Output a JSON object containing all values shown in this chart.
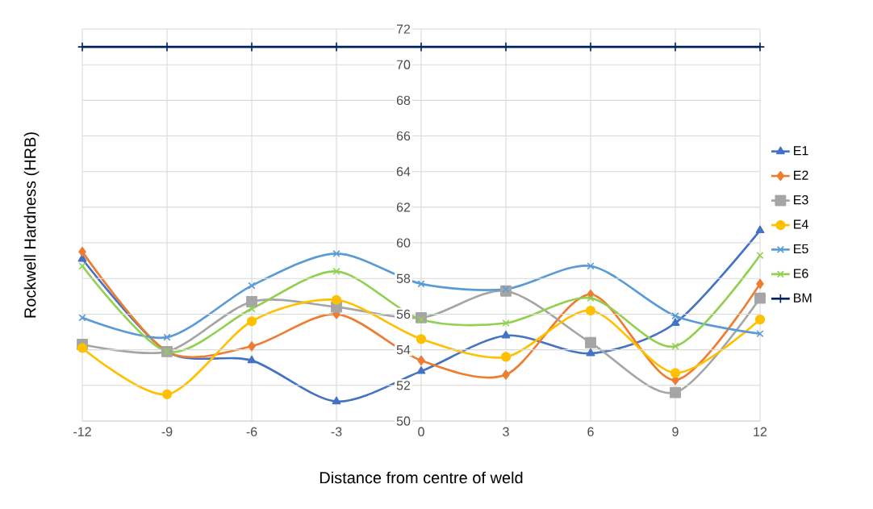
{
  "chart_data": {
    "type": "line",
    "xlabel": "Distance from centre of weld",
    "ylabel": "Rockwell Hardness (HRB)",
    "x": [
      -12,
      -9,
      -6,
      -3,
      0,
      3,
      6,
      9,
      12
    ],
    "xlim": [
      -12,
      12
    ],
    "xticks": [
      -12,
      -9,
      -6,
      -3,
      0,
      3,
      6,
      9,
      12
    ],
    "ylim": [
      50,
      72
    ],
    "yticks": [
      50,
      52,
      54,
      56,
      58,
      60,
      62,
      64,
      66,
      68,
      70,
      72
    ],
    "grid": true,
    "legend": "right",
    "series": [
      {
        "name": "E1",
        "color": "#4472c4",
        "marker": "triangle",
        "values": [
          59.1,
          53.9,
          53.4,
          51.1,
          52.8,
          54.8,
          53.8,
          55.5,
          60.7
        ]
      },
      {
        "name": "E2",
        "color": "#ed7d31",
        "marker": "diamond",
        "values": [
          59.5,
          53.9,
          54.2,
          56.0,
          53.4,
          52.6,
          57.1,
          52.3,
          57.7
        ]
      },
      {
        "name": "E3",
        "color": "#a5a5a5",
        "marker": "square",
        "values": [
          54.3,
          53.9,
          56.7,
          56.4,
          55.8,
          57.3,
          54.4,
          51.6,
          56.9
        ]
      },
      {
        "name": "E4",
        "color": "#ffc000",
        "marker": "circle",
        "values": [
          54.1,
          51.5,
          55.6,
          56.8,
          54.6,
          53.6,
          56.2,
          52.7,
          55.7
        ]
      },
      {
        "name": "E5",
        "color": "#5b9bd5",
        "marker": "cross",
        "values": [
          55.8,
          54.7,
          57.6,
          59.4,
          57.7,
          57.4,
          58.7,
          55.9,
          54.9
        ]
      },
      {
        "name": "E6",
        "color": "#92d050",
        "marker": "cross",
        "values": [
          58.7,
          53.9,
          56.3,
          58.4,
          55.7,
          55.5,
          56.9,
          54.2,
          59.3
        ]
      },
      {
        "name": "BM",
        "color": "#002060",
        "marker": "plus",
        "values": [
          71,
          71,
          71,
          71,
          71,
          71,
          71,
          71,
          71
        ]
      }
    ]
  }
}
